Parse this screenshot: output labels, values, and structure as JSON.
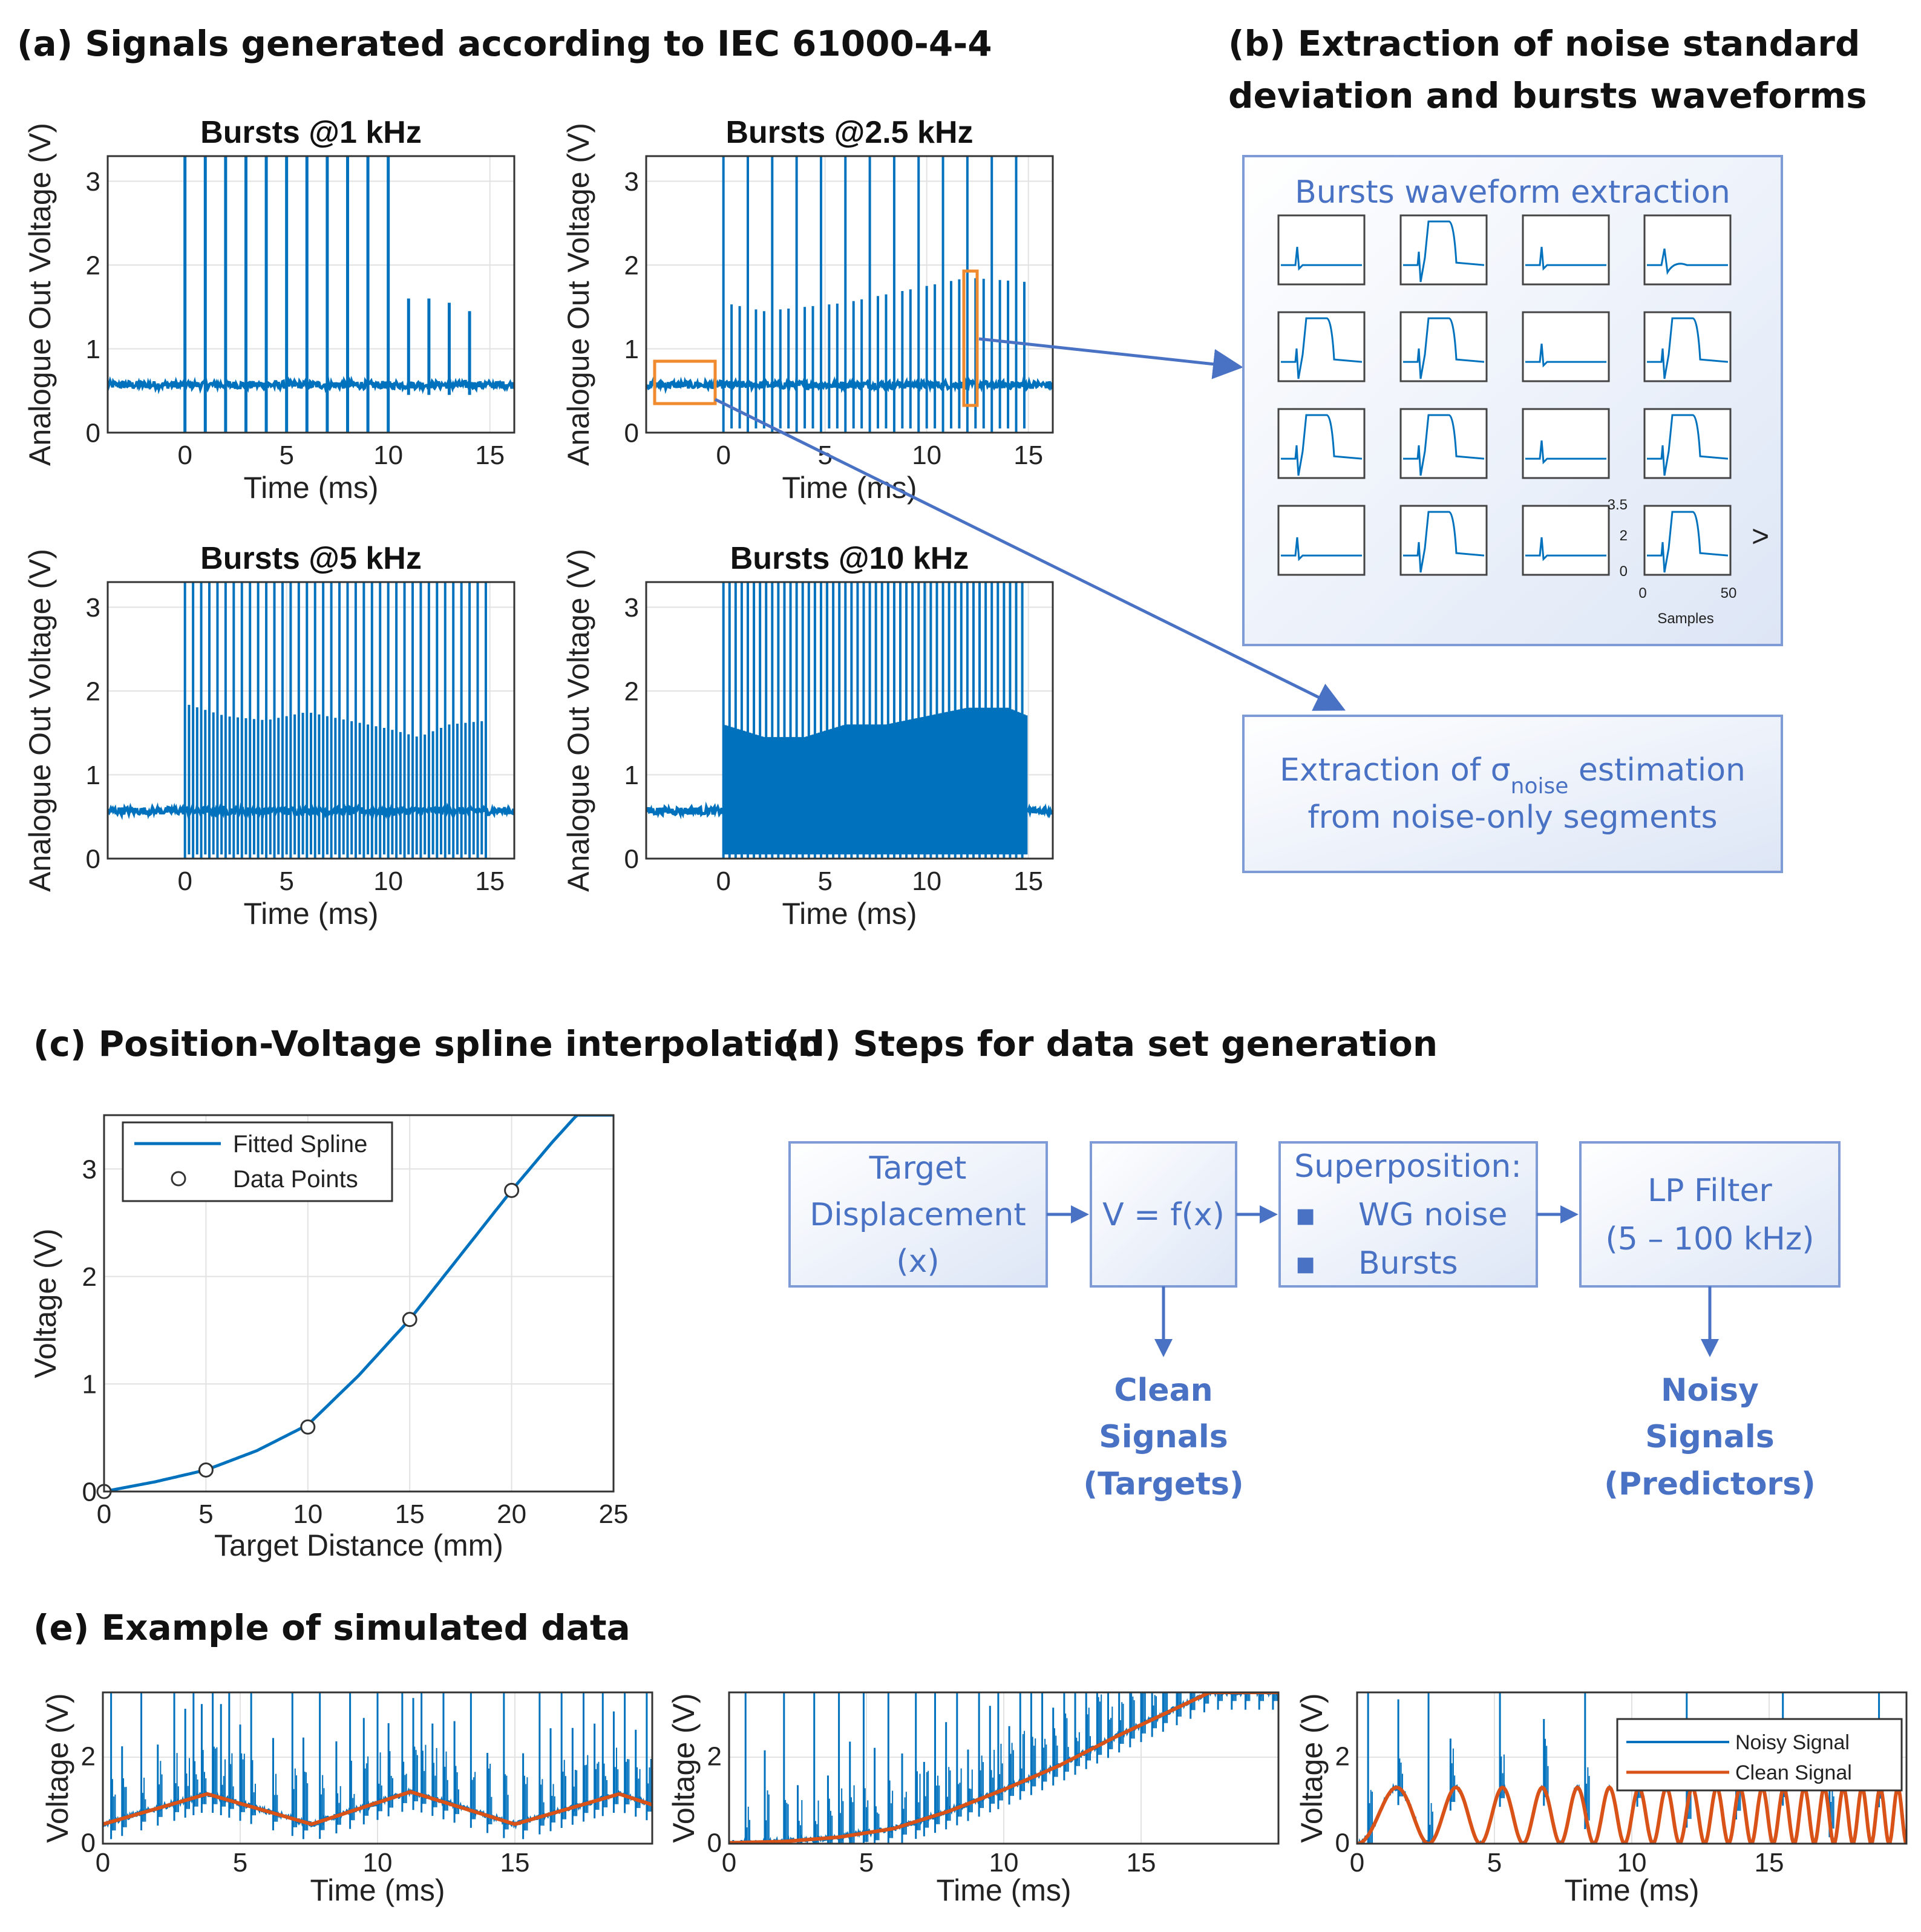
{
  "sections": {
    "a": "(a) Signals generated according to IEC 61000-4-4",
    "b_line1": "(b) Extraction of noise standard",
    "b_line2": "deviation and bursts waveforms",
    "c": "(c) Position-Voltage spline interpolation",
    "d": "(d) Steps for data set generation",
    "e": "(e) Example of simulated data"
  },
  "colors": {
    "signal": "#0072BD",
    "clean": "#D95319",
    "orange_box": "#F08A2E",
    "flow": "#4a72c4",
    "box_border": "#7e9bd6"
  },
  "panel_b": {
    "top_box_title": "Bursts waveform extraction",
    "grid_pattern": [
      "spike",
      "pulse",
      "spike",
      "wiggle",
      "pulse",
      "pulse",
      "spike",
      "pulse",
      "pulse",
      "pulse",
      "spike",
      "pulse",
      "spike",
      "pulse",
      "spike",
      "pulse"
    ],
    "inset": {
      "ymax_label": "3.5",
      "ymid_label": "2",
      "ymin_label": "0",
      "xmin_label": "0",
      "xmax_label": "50",
      "xlabel": "Samples",
      "more": ">"
    },
    "bottom_box_line1_a": "Extraction of σ",
    "bottom_box_line1_sub": "noise",
    "bottom_box_line1_b": " estimation",
    "bottom_box_line2": "from noise-only segments"
  },
  "panel_d": {
    "box1": [
      "Target",
      "Displacement",
      "(x)"
    ],
    "box2": "V = f(x)",
    "box3_title": "Superposition:",
    "box3_items": [
      "WG noise",
      "Bursts"
    ],
    "bullet": "▪",
    "box4": [
      "LP Filter",
      "(5 – 100 kHz)"
    ],
    "out_left": [
      "Clean",
      "Signals",
      "(Targets)"
    ],
    "out_right": [
      "Noisy",
      "Signals",
      "(Predictors)"
    ]
  },
  "chart_data": [
    {
      "id": "a1",
      "type": "line",
      "title": "Bursts @1 kHz",
      "xlabel": "Time (ms)",
      "ylabel": "Analogue Out Voltage (V)",
      "xlim": [
        -3.8,
        16.2
      ],
      "ylim": [
        0,
        3.3
      ],
      "xticks": [
        0,
        5,
        10,
        15
      ],
      "yticks": [
        0,
        1,
        2,
        3
      ],
      "baseline": 0.57,
      "burst_start": 0,
      "burst_end": 14.6,
      "burst_period": 1,
      "burst_peaks": [
        3.5,
        3.5,
        3.5,
        3.5,
        3.5,
        3.5,
        3.5,
        3.5,
        3.5,
        3.5,
        3.5,
        1.6,
        1.6,
        1.55,
        1.45
      ],
      "undershoot": [
        0,
        0,
        0,
        0,
        0,
        0,
        0,
        0,
        0,
        0,
        0,
        0.45,
        0.45,
        0.45,
        0.45
      ]
    },
    {
      "id": "a2",
      "type": "line",
      "title": "Bursts @2.5 kHz",
      "xlabel": "Time (ms)",
      "ylabel": "Analogue Out Voltage (V)",
      "xlim": [
        -3.8,
        16.2
      ],
      "ylim": [
        0,
        3.3
      ],
      "xticks": [
        0,
        5,
        10,
        15
      ],
      "yticks": [
        0,
        1,
        2,
        3
      ],
      "baseline": 0.57,
      "burst_start": 0,
      "burst_end": 14.8,
      "burst_period": 0.4,
      "envelope_x": [
        0,
        2,
        4,
        6,
        8,
        10,
        12,
        14.8
      ],
      "envelope_y": [
        1.55,
        1.45,
        1.5,
        1.55,
        1.65,
        1.75,
        1.85,
        1.8
      ],
      "spike_every": 3
    },
    {
      "id": "a3",
      "type": "line",
      "title": "Bursts @5 kHz",
      "xlabel": "Time (ms)",
      "ylabel": "Analogue Out Voltage (V)",
      "xlim": [
        -3.8,
        16.2
      ],
      "ylim": [
        0,
        3.3
      ],
      "xticks": [
        0,
        5,
        10,
        15
      ],
      "yticks": [
        0,
        1,
        2,
        3
      ],
      "baseline": 0.57,
      "burst_start": 0,
      "burst_end": 14.9,
      "burst_period": 0.2,
      "envelope_x": [
        0,
        2,
        4,
        6,
        8,
        10,
        11.5,
        13,
        15
      ],
      "envelope_y": [
        1.85,
        1.7,
        1.65,
        1.75,
        1.65,
        1.55,
        1.45,
        1.6,
        1.65
      ],
      "spike_every": 2
    },
    {
      "id": "a4",
      "type": "line",
      "title": "Bursts @10 kHz",
      "xlabel": "Time (ms)",
      "ylabel": "Analogue Out Voltage (V)",
      "xlim": [
        -3.8,
        16.2
      ],
      "ylim": [
        0,
        3.3
      ],
      "xticks": [
        0,
        5,
        10,
        15
      ],
      "yticks": [
        0,
        1,
        2,
        3
      ],
      "baseline": 0.57,
      "burst_start": 0,
      "burst_end": 14.9,
      "burst_period": 0.1,
      "envelope_x": [
        0,
        2,
        4,
        6,
        8,
        10,
        12,
        14,
        15
      ],
      "envelope_y": [
        1.6,
        1.45,
        1.45,
        1.6,
        1.6,
        1.7,
        1.8,
        1.8,
        1.7
      ],
      "spike_every": 3
    },
    {
      "id": "c",
      "type": "line",
      "xlabel": "Target Distance (mm)",
      "ylabel": "Voltage (V)",
      "xlim": [
        0,
        25
      ],
      "ylim": [
        0,
        3.5
      ],
      "xticks": [
        0,
        5,
        10,
        15,
        20,
        25
      ],
      "yticks": [
        0,
        1,
        2,
        3
      ],
      "spline_x": [
        0,
        2.5,
        5,
        7.5,
        10,
        12.5,
        15,
        17.5,
        20,
        22,
        23.2
      ],
      "spline_y": [
        0,
        0.09,
        0.2,
        0.38,
        0.62,
        1.08,
        1.6,
        2.2,
        2.8,
        3.25,
        3.5
      ],
      "points_x": [
        0,
        5,
        10,
        15,
        20
      ],
      "points_y": [
        0,
        0.2,
        0.6,
        1.6,
        2.8
      ],
      "legend": [
        "Fitted Spline",
        "Data Points"
      ],
      "legend_position": "top-left"
    },
    {
      "id": "e1",
      "type": "line",
      "xlabel": "Time (ms)",
      "ylabel": "Voltage (V)",
      "xlim": [
        0,
        20
      ],
      "ylim": [
        0,
        3.5
      ],
      "xticks": [
        0,
        5,
        10,
        15
      ],
      "yticks": [
        0,
        2
      ],
      "clean_x": [
        0,
        3.8,
        7.6,
        11.2,
        15,
        18.8,
        20
      ],
      "clean_y": [
        0.45,
        1.15,
        0.45,
        1.2,
        0.45,
        1.15,
        0.9
      ],
      "burst_ms": [
        0.3,
        0.7,
        1.4,
        2.0,
        2.6,
        3.0,
        3.3,
        3.6,
        4.0,
        4.3,
        4.6,
        5.0,
        5.4,
        6.2,
        6.9,
        7.3,
        7.9,
        8.5,
        9.0,
        9.5,
        10.0,
        10.4,
        10.9,
        11.3,
        11.6,
        12.0,
        12.4,
        12.8,
        13.4,
        14.0,
        14.6,
        15.3,
        15.9,
        16.3,
        16.7,
        17.1,
        17.5,
        17.9,
        18.2,
        18.6,
        19.0,
        19.4,
        19.8
      ],
      "legend": []
    },
    {
      "id": "e2",
      "type": "line",
      "xlabel": "Time (ms)",
      "ylabel": "Voltage (V)",
      "xlim": [
        0,
        20
      ],
      "ylim": [
        0,
        3.5
      ],
      "xticks": [
        0,
        5,
        10,
        15
      ],
      "yticks": [
        0,
        2
      ],
      "clean_x": [
        0,
        2,
        4,
        6,
        8,
        10,
        12,
        14,
        16,
        17.5,
        20
      ],
      "clean_y": [
        0.02,
        0.05,
        0.15,
        0.35,
        0.75,
        1.25,
        1.8,
        2.45,
        3.05,
        3.5,
        3.5
      ],
      "burst_ms": [
        0.6,
        1.3,
        2.0,
        2.5,
        3.1,
        3.6,
        4.0,
        4.4,
        4.9,
        5.3,
        5.8,
        6.3,
        6.8,
        7.1,
        7.5,
        7.9,
        8.3,
        8.7,
        9.1,
        9.5,
        9.8,
        10.2,
        10.6,
        11.0,
        11.4,
        11.8,
        12.2,
        12.6,
        13.0,
        13.4,
        13.8,
        14.2,
        14.6,
        15.0,
        15.4,
        15.8,
        16.3,
        16.8,
        17.3,
        17.8,
        18.3,
        18.8,
        19.3,
        19.8
      ],
      "legend": []
    },
    {
      "id": "e3",
      "type": "line",
      "xlabel": "Time (ms)",
      "ylabel": "Voltage (V)",
      "xlim": [
        0,
        20
      ],
      "ylim": [
        0,
        3.5
      ],
      "xticks": [
        0,
        5,
        10,
        15
      ],
      "yticks": [
        0,
        2
      ],
      "chirp": {
        "amp_center": 0.65,
        "amp": 0.65,
        "f0_khz": 0.3,
        "f1_khz": 1.6
      },
      "burst_ms": [
        0.4,
        1.5,
        2.6,
        3.4,
        5.2,
        6.8,
        8.3,
        10.2,
        12.0,
        13.8,
        15.5,
        17.2,
        19.0
      ],
      "legend": [
        "Noisy Signal",
        "Clean Signal"
      ],
      "legend_position": "top-right"
    }
  ]
}
